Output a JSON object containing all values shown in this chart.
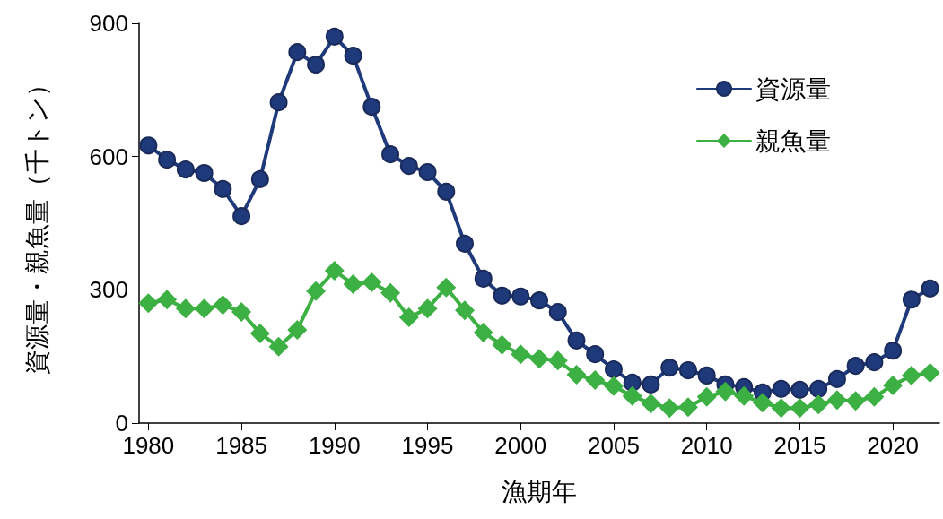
{
  "chart_data": {
    "type": "line",
    "xlabel": "漁期年",
    "ylabel": "資源量・親魚量（千トン）",
    "x": [
      1980,
      1981,
      1982,
      1983,
      1984,
      1985,
      1986,
      1987,
      1988,
      1989,
      1990,
      1991,
      1992,
      1993,
      1994,
      1995,
      1996,
      1997,
      1998,
      1999,
      2000,
      2001,
      2002,
      2003,
      2004,
      2005,
      2006,
      2007,
      2008,
      2009,
      2010,
      2011,
      2012,
      2013,
      2014,
      2015,
      2016,
      2017,
      2018,
      2019,
      2020,
      2021,
      2022
    ],
    "series": [
      {
        "name": "資源量",
        "color": "#1f3a7a",
        "marker": "circle",
        "values": [
          625,
          593,
          571,
          563,
          527,
          466,
          549,
          722,
          835,
          807,
          870,
          827,
          712,
          605,
          579,
          565,
          521,
          404,
          325,
          287,
          285,
          276,
          250,
          186,
          155,
          121,
          91,
          87,
          125,
          119,
          107,
          87,
          81,
          69,
          77,
          75,
          77,
          99,
          129,
          137,
          163,
          278,
          303
        ]
      },
      {
        "name": "親魚量",
        "color": "#3cb043",
        "marker": "diamond",
        "values": [
          270,
          278,
          258,
          258,
          266,
          250,
          202,
          172,
          210,
          297,
          343,
          313,
          317,
          293,
          238,
          258,
          305,
          254,
          204,
          176,
          155,
          145,
          141,
          109,
          97,
          83,
          61,
          44,
          34,
          36,
          59,
          71,
          61,
          46,
          34,
          34,
          42,
          52,
          50,
          59,
          85,
          107,
          113
        ]
      }
    ],
    "xlim": [
      1979.5,
      2022.5
    ],
    "xticks": [
      1980,
      1985,
      1990,
      1995,
      2000,
      2005,
      2010,
      2015,
      2020
    ],
    "ylim": [
      0,
      900
    ],
    "yticks": [
      0,
      300,
      600,
      900
    ],
    "grid": false,
    "legend": "top right",
    "line_style": "solid"
  }
}
